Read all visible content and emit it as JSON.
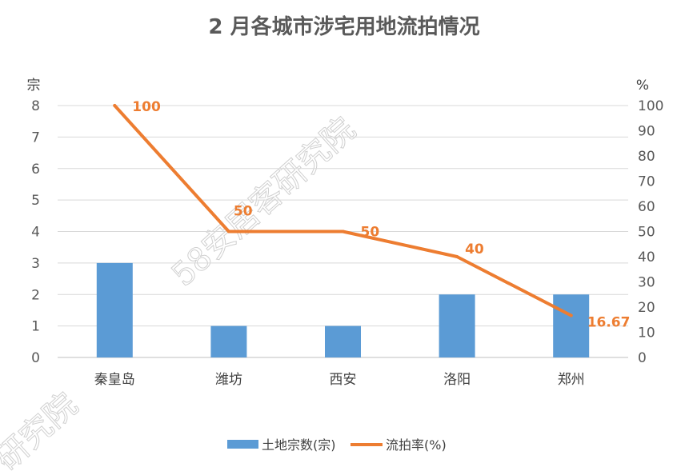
{
  "chart_data": {
    "type": "bar",
    "title": "2 月各城市涉宅用地流拍情况",
    "categories": [
      "秦皇岛",
      "潍坊",
      "西安",
      "洛阳",
      "郑州"
    ],
    "series": [
      {
        "name": "土地宗数(宗)",
        "type": "bar",
        "axis": "left",
        "color": "#5B9BD5",
        "values": [
          3,
          1,
          1,
          2,
          2
        ]
      },
      {
        "name": "流拍率(%)",
        "type": "line",
        "axis": "right",
        "color": "#ED7D31",
        "values": [
          100,
          50,
          50,
          40,
          16.67
        ],
        "labels": [
          "100",
          "50",
          "50",
          "40",
          "16.67"
        ]
      }
    ],
    "y_left": {
      "unit": "宗",
      "min": 0,
      "max": 8,
      "ticks": [
        "0",
        "1",
        "2",
        "3",
        "4",
        "5",
        "6",
        "7",
        "8"
      ]
    },
    "y_right": {
      "unit": "%",
      "min": 0,
      "max": 100,
      "ticks": [
        "0",
        "10",
        "20",
        "30",
        "40",
        "50",
        "60",
        "70",
        "80",
        "90",
        "100"
      ]
    },
    "grid": true,
    "legend_position": "bottom"
  },
  "watermark": {
    "text1": "58安居客研究院",
    "text2": "研究院"
  }
}
